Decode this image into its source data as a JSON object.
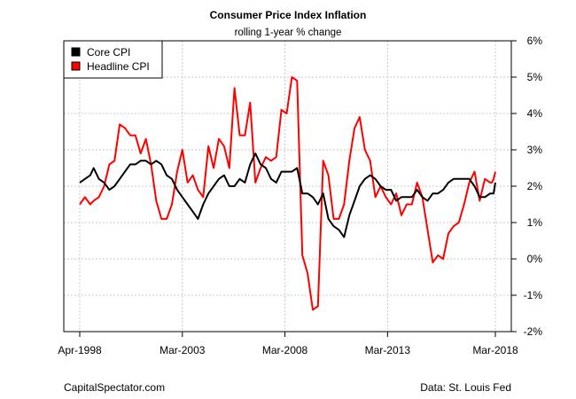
{
  "chart_data": {
    "type": "line",
    "title": "Consumer Price Index Inflation",
    "subtitle": "rolling 1-year % change",
    "xlabel": "",
    "ylabel": "",
    "x_range": [
      "1998-04",
      "2018-03"
    ],
    "x_ticks": [
      "Apr-1998",
      "Mar-2003",
      "Mar-2008",
      "Mar-2013",
      "Mar-2018"
    ],
    "y_ticks": [
      "6%",
      "5%",
      "4%",
      "3%",
      "2%",
      "1%",
      "0%",
      "-1%",
      "-2%"
    ],
    "ylim": [
      -2,
      6
    ],
    "grid": true,
    "legend_position": "top-left",
    "series": [
      {
        "name": "Core CPI",
        "color": "#000000",
        "points": [
          [
            "1998-04",
            2.1
          ],
          [
            "1998-07",
            2.2
          ],
          [
            "1998-10",
            2.3
          ],
          [
            "1998-12",
            2.5
          ],
          [
            "1999-03",
            2.2
          ],
          [
            "1999-06",
            2.1
          ],
          [
            "1999-09",
            1.9
          ],
          [
            "1999-12",
            2.0
          ],
          [
            "2000-03",
            2.2
          ],
          [
            "2000-06",
            2.4
          ],
          [
            "2000-09",
            2.6
          ],
          [
            "2000-12",
            2.6
          ],
          [
            "2001-03",
            2.7
          ],
          [
            "2001-06",
            2.7
          ],
          [
            "2001-09",
            2.6
          ],
          [
            "2001-12",
            2.7
          ],
          [
            "2002-03",
            2.6
          ],
          [
            "2002-06",
            2.3
          ],
          [
            "2002-09",
            2.2
          ],
          [
            "2002-12",
            1.9
          ],
          [
            "2003-03",
            1.7
          ],
          [
            "2003-06",
            1.5
          ],
          [
            "2003-09",
            1.3
          ],
          [
            "2003-12",
            1.1
          ],
          [
            "2004-03",
            1.5
          ],
          [
            "2004-06",
            1.8
          ],
          [
            "2004-09",
            2.0
          ],
          [
            "2004-12",
            2.2
          ],
          [
            "2005-03",
            2.3
          ],
          [
            "2005-06",
            2.0
          ],
          [
            "2005-09",
            2.0
          ],
          [
            "2005-12",
            2.2
          ],
          [
            "2006-03",
            2.1
          ],
          [
            "2006-06",
            2.6
          ],
          [
            "2006-09",
            2.9
          ],
          [
            "2006-12",
            2.6
          ],
          [
            "2007-03",
            2.5
          ],
          [
            "2007-06",
            2.2
          ],
          [
            "2007-09",
            2.1
          ],
          [
            "2007-12",
            2.4
          ],
          [
            "2008-03",
            2.4
          ],
          [
            "2008-06",
            2.4
          ],
          [
            "2008-09",
            2.5
          ],
          [
            "2008-12",
            1.8
          ],
          [
            "2009-03",
            1.8
          ],
          [
            "2009-06",
            1.7
          ],
          [
            "2009-09",
            1.5
          ],
          [
            "2009-12",
            1.8
          ],
          [
            "2010-03",
            1.1
          ],
          [
            "2010-06",
            0.9
          ],
          [
            "2010-09",
            0.8
          ],
          [
            "2010-12",
            0.6
          ],
          [
            "2011-03",
            1.2
          ],
          [
            "2011-06",
            1.6
          ],
          [
            "2011-09",
            2.0
          ],
          [
            "2011-12",
            2.2
          ],
          [
            "2012-03",
            2.3
          ],
          [
            "2012-06",
            2.2
          ],
          [
            "2012-09",
            2.0
          ],
          [
            "2012-12",
            1.9
          ],
          [
            "2013-03",
            1.9
          ],
          [
            "2013-06",
            1.6
          ],
          [
            "2013-09",
            1.7
          ],
          [
            "2013-12",
            1.7
          ],
          [
            "2014-03",
            1.7
          ],
          [
            "2014-06",
            1.9
          ],
          [
            "2014-09",
            1.7
          ],
          [
            "2014-12",
            1.6
          ],
          [
            "2015-03",
            1.8
          ],
          [
            "2015-06",
            1.8
          ],
          [
            "2015-09",
            1.9
          ],
          [
            "2015-12",
            2.1
          ],
          [
            "2016-03",
            2.2
          ],
          [
            "2016-06",
            2.2
          ],
          [
            "2016-09",
            2.2
          ],
          [
            "2016-12",
            2.2
          ],
          [
            "2017-03",
            2.0
          ],
          [
            "2017-06",
            1.7
          ],
          [
            "2017-09",
            1.7
          ],
          [
            "2017-12",
            1.8
          ],
          [
            "2018-01",
            1.8
          ],
          [
            "2018-02",
            1.8
          ],
          [
            "2018-03",
            2.1
          ]
        ]
      },
      {
        "name": "Headline CPI",
        "color": "#ff0000",
        "points": [
          [
            "1998-04",
            1.5
          ],
          [
            "1998-07",
            1.7
          ],
          [
            "1998-10",
            1.5
          ],
          [
            "1998-12",
            1.6
          ],
          [
            "1999-03",
            1.7
          ],
          [
            "1999-06",
            2.0
          ],
          [
            "1999-09",
            2.6
          ],
          [
            "1999-12",
            2.7
          ],
          [
            "2000-03",
            3.7
          ],
          [
            "2000-06",
            3.6
          ],
          [
            "2000-09",
            3.4
          ],
          [
            "2000-12",
            3.4
          ],
          [
            "2001-03",
            2.9
          ],
          [
            "2001-06",
            3.3
          ],
          [
            "2001-09",
            2.6
          ],
          [
            "2001-12",
            1.6
          ],
          [
            "2002-03",
            1.1
          ],
          [
            "2002-06",
            1.1
          ],
          [
            "2002-09",
            1.5
          ],
          [
            "2002-12",
            2.4
          ],
          [
            "2003-03",
            3.0
          ],
          [
            "2003-06",
            2.1
          ],
          [
            "2003-09",
            2.3
          ],
          [
            "2003-12",
            1.9
          ],
          [
            "2004-03",
            1.7
          ],
          [
            "2004-06",
            3.1
          ],
          [
            "2004-09",
            2.5
          ],
          [
            "2004-12",
            3.3
          ],
          [
            "2005-03",
            3.1
          ],
          [
            "2005-06",
            2.5
          ],
          [
            "2005-09",
            4.7
          ],
          [
            "2005-12",
            3.4
          ],
          [
            "2006-03",
            3.4
          ],
          [
            "2006-06",
            4.3
          ],
          [
            "2006-09",
            2.1
          ],
          [
            "2006-12",
            2.5
          ],
          [
            "2007-03",
            2.8
          ],
          [
            "2007-06",
            2.7
          ],
          [
            "2007-09",
            2.8
          ],
          [
            "2007-12",
            4.1
          ],
          [
            "2008-03",
            4.0
          ],
          [
            "2008-06",
            5.0
          ],
          [
            "2008-09",
            4.9
          ],
          [
            "2008-12",
            0.1
          ],
          [
            "2009-03",
            -0.4
          ],
          [
            "2009-06",
            -1.4
          ],
          [
            "2009-09",
            -1.3
          ],
          [
            "2009-12",
            2.7
          ],
          [
            "2010-03",
            2.3
          ],
          [
            "2010-06",
            1.1
          ],
          [
            "2010-09",
            1.1
          ],
          [
            "2010-12",
            1.5
          ],
          [
            "2011-03",
            2.7
          ],
          [
            "2011-06",
            3.6
          ],
          [
            "2011-09",
            3.9
          ],
          [
            "2011-12",
            3.0
          ],
          [
            "2012-03",
            2.7
          ],
          [
            "2012-06",
            1.7
          ],
          [
            "2012-09",
            2.0
          ],
          [
            "2012-12",
            1.7
          ],
          [
            "2013-03",
            1.5
          ],
          [
            "2013-06",
            1.8
          ],
          [
            "2013-09",
            1.2
          ],
          [
            "2013-12",
            1.5
          ],
          [
            "2014-03",
            1.5
          ],
          [
            "2014-06",
            2.1
          ],
          [
            "2014-09",
            1.7
          ],
          [
            "2014-12",
            0.8
          ],
          [
            "2015-03",
            -0.1
          ],
          [
            "2015-06",
            0.1
          ],
          [
            "2015-09",
            0.0
          ],
          [
            "2015-12",
            0.7
          ],
          [
            "2016-03",
            0.9
          ],
          [
            "2016-06",
            1.0
          ],
          [
            "2016-09",
            1.5
          ],
          [
            "2016-12",
            2.1
          ],
          [
            "2017-03",
            2.4
          ],
          [
            "2017-06",
            1.6
          ],
          [
            "2017-09",
            2.2
          ],
          [
            "2017-12",
            2.1
          ],
          [
            "2018-01",
            2.1
          ],
          [
            "2018-02",
            2.2
          ],
          [
            "2018-03",
            2.4
          ]
        ]
      }
    ]
  },
  "footer": {
    "left": "CapitalSpectator.com",
    "right": "Data: St. Louis Fed"
  }
}
